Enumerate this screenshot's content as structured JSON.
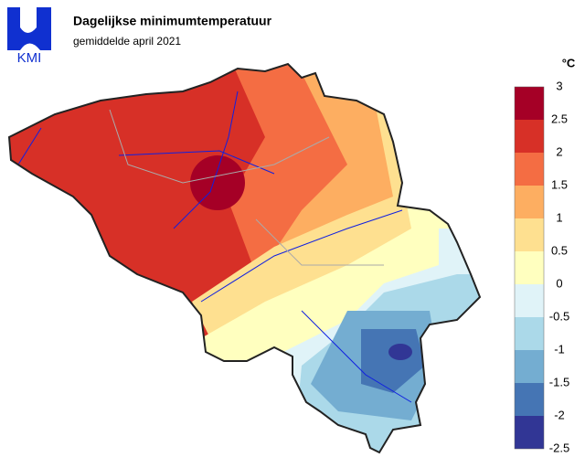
{
  "header": {
    "logo": "KMI",
    "title": "Dagelijkse minimumtemperatuur",
    "subtitle": "gemiddelde april 2021"
  },
  "legend": {
    "unit": "°C",
    "ticks": [
      3,
      2.5,
      2,
      1.5,
      1,
      0.5,
      0,
      -0.5,
      -1,
      -1.5,
      -2,
      -2.5
    ],
    "colors": [
      "#a50026",
      "#d73027",
      "#f46d43",
      "#fdae61",
      "#fee090",
      "#ffffbf",
      "#e0f3f8",
      "#abd9e9",
      "#74add1",
      "#4575b4",
      "#313695"
    ]
  }
}
